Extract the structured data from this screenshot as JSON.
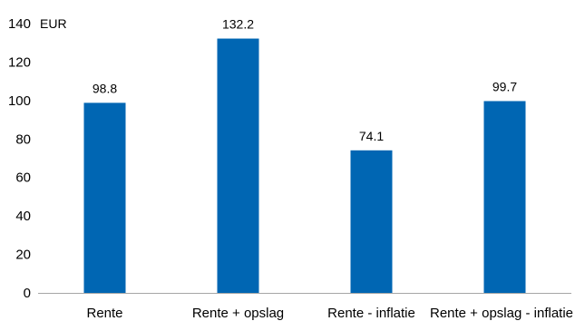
{
  "chart_data": {
    "type": "bar",
    "title": "",
    "xlabel": "",
    "ylabel": "EUR",
    "categories": [
      "Rente",
      "Rente + opslag",
      "Rente - inflatie",
      "Rente + opslag - inflatie"
    ],
    "values": [
      98.8,
      132.2,
      74.1,
      99.7
    ],
    "data_labels": [
      "98.8",
      "132.2",
      "74.1",
      "99.7"
    ],
    "ylim": [
      0,
      140
    ],
    "yticks": [
      0,
      20,
      40,
      60,
      80,
      100,
      120,
      140
    ],
    "grid": false,
    "legend": "none",
    "bar_color": "#0066b3"
  }
}
